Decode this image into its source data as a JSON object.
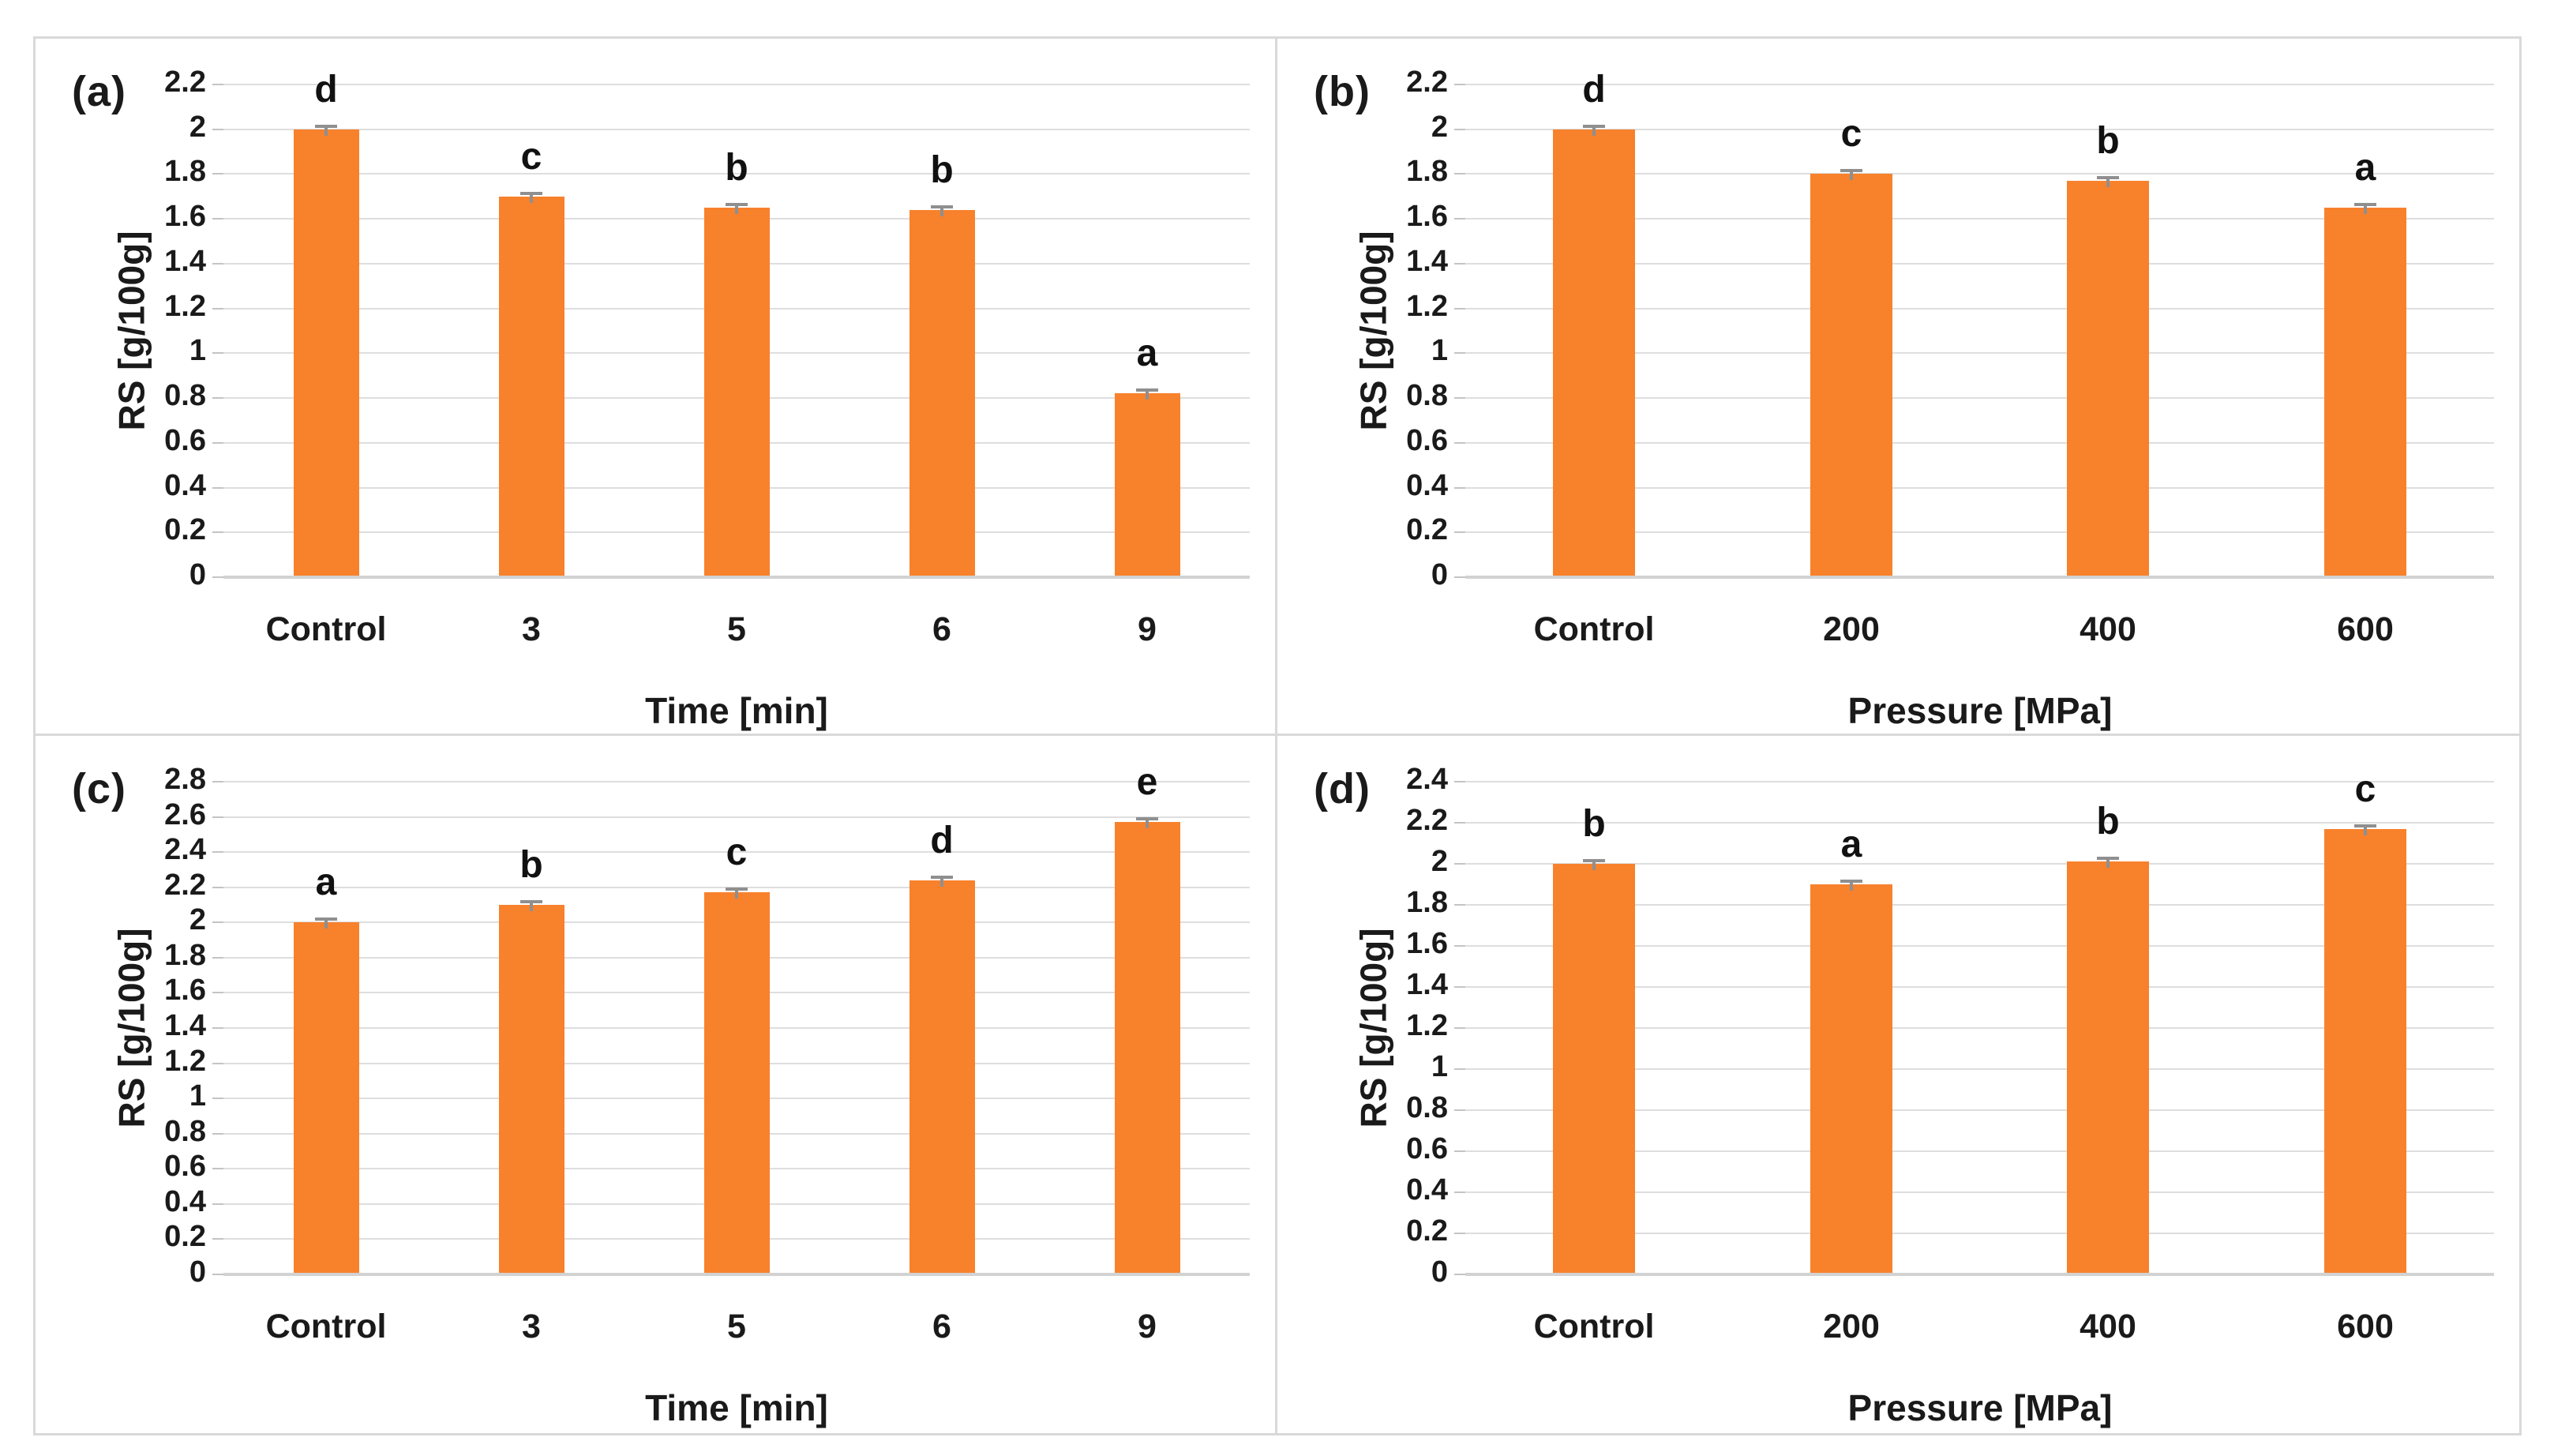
{
  "figure": {
    "bar_color": "#F8812C",
    "gridline_color": "#dedede",
    "border_color": "#d9d9d9",
    "error_bar_color": "#8f8f8f",
    "background_color": "#ffffff"
  },
  "chart_data": [
    {
      "type": "bar",
      "panel_label": "(a)",
      "categories": [
        "Control",
        "3",
        "5",
        "6",
        "9"
      ],
      "values": [
        2.0,
        1.7,
        1.65,
        1.64,
        0.82
      ],
      "sig_letters": [
        "d",
        "c",
        "b",
        "b",
        "a"
      ],
      "error_bar": 0.02,
      "xlabel": "Time [min]",
      "ylabel": "RS [g/100g]",
      "ylim": [
        0,
        2.2
      ],
      "ytick_step": 0.2,
      "ytick_labels": [
        "0",
        "0.2",
        "0.4",
        "0.6",
        "0.8",
        "1",
        "1.2",
        "1.4",
        "1.6",
        "1.8",
        "2",
        "2.2"
      ],
      "grid": true,
      "legend": "none"
    },
    {
      "type": "bar",
      "panel_label": "(b)",
      "categories": [
        "Control",
        "200",
        "400",
        "600"
      ],
      "values": [
        2.0,
        1.8,
        1.77,
        1.65
      ],
      "sig_letters": [
        "d",
        "c",
        "b",
        "a"
      ],
      "error_bar": 0.02,
      "xlabel": "Pressure [MPa]",
      "ylabel": "RS [g/100g]",
      "ylim": [
        0,
        2.2
      ],
      "ytick_step": 0.2,
      "ytick_labels": [
        "0",
        "0.2",
        "0.4",
        "0.6",
        "0.8",
        "1",
        "1.2",
        "1.4",
        "1.6",
        "1.8",
        "2",
        "2.2"
      ],
      "grid": true,
      "legend": "none"
    },
    {
      "type": "bar",
      "panel_label": "(c)",
      "categories": [
        "Control",
        "3",
        "5",
        "6",
        "9"
      ],
      "values": [
        2.0,
        2.1,
        2.17,
        2.24,
        2.57
      ],
      "sig_letters": [
        "a",
        "b",
        "c",
        "d",
        "e"
      ],
      "error_bar": 0.02,
      "xlabel": "Time [min]",
      "ylabel": "RS [g/100g]",
      "ylim": [
        0,
        2.8
      ],
      "ytick_step": 0.2,
      "ytick_labels": [
        "0",
        "0.2",
        "0.4",
        "0.6",
        "0.8",
        "1",
        "1.2",
        "1.4",
        "1.6",
        "1.8",
        "2",
        "2.2",
        "2.4",
        "2.6",
        "2.8"
      ],
      "grid": true,
      "legend": "none"
    },
    {
      "type": "bar",
      "panel_label": "(d)",
      "categories": [
        "Control",
        "200",
        "400",
        "600"
      ],
      "values": [
        2.0,
        1.9,
        2.01,
        2.17
      ],
      "sig_letters": [
        "b",
        "a",
        "b",
        "c"
      ],
      "error_bar": 0.02,
      "xlabel": "Pressure [MPa]",
      "ylabel": "RS [g/100g]",
      "ylim": [
        0,
        2.4
      ],
      "ytick_step": 0.2,
      "ytick_labels": [
        "0",
        "0.2",
        "0.4",
        "0.6",
        "0.8",
        "1",
        "1.2",
        "1.4",
        "1.6",
        "1.8",
        "2",
        "2.2",
        "2.4"
      ],
      "grid": true,
      "legend": "none"
    }
  ]
}
